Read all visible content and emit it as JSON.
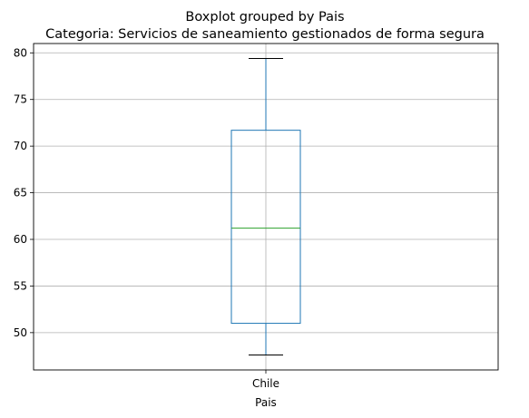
{
  "chart_data": {
    "type": "boxplot",
    "suptitle": "Boxplot grouped by Pais",
    "title": "Categoria: Servicios de saneamiento gestionados de forma segura",
    "xlabel": "Pais",
    "ylabel": "",
    "categories": [
      "Chile"
    ],
    "boxes": [
      {
        "category": "Chile",
        "whisker_low": 47.6,
        "q1": 51.0,
        "median": 61.2,
        "q3": 71.7,
        "whisker_high": 79.4
      }
    ],
    "ylim": [
      46.0,
      81.0
    ],
    "yticks": [
      50,
      55,
      60,
      65,
      70,
      75,
      80
    ],
    "grid": true,
    "colors": {
      "box": "#1f77b4",
      "median": "#2ca02c",
      "whisker_cap": "#000000",
      "grid": "#b0b0b0",
      "axes": "#000000"
    }
  }
}
